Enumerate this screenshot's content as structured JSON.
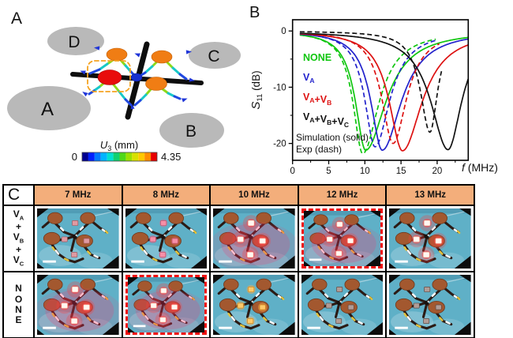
{
  "panelA": {
    "panel_label": "A",
    "regions": [
      {
        "label": "A"
      },
      {
        "label": "B"
      },
      {
        "label": "C"
      },
      {
        "label": "D"
      }
    ],
    "region_color": "#b9b9b9",
    "highlight_box_color": "#f5a320",
    "colorbar": {
      "symbol": "U",
      "sub": "3",
      "unit": " (mm)",
      "min": "0",
      "max": "4.35",
      "colors": [
        "#000090",
        "#0020ff",
        "#0078ff",
        "#00b4ff",
        "#00e0d0",
        "#10d070",
        "#50d818",
        "#9ce000",
        "#d8e000",
        "#ffc800",
        "#ff8c00",
        "#e80000"
      ]
    }
  },
  "panelB": {
    "panel_label": "B"
  },
  "chart_data": {
    "type": "line",
    "title": "",
    "xlabel": {
      "symbol": "f",
      "unit": " (MHz)"
    },
    "ylabel": {
      "symbol": "S",
      "sub": "11",
      "unit": " (dB)"
    },
    "xlim": [
      0,
      24.3
    ],
    "ylim": [
      -23,
      2
    ],
    "xticks": [
      0,
      5,
      10,
      15,
      20
    ],
    "xminorticks": [
      2.5,
      7.5,
      12.5,
      17.5,
      22.5
    ],
    "yticks": [
      0,
      -10,
      -20
    ],
    "yminorticks": [
      -5,
      -15
    ],
    "grid": false,
    "legend_position": "inside-left",
    "legend": [
      {
        "color": "#0fc60f",
        "segs": [
          {
            "t": "NONE"
          }
        ]
      },
      {
        "color": "#2222cc",
        "segs": [
          {
            "t": "V"
          },
          {
            "t": "A",
            "sub": true
          }
        ]
      },
      {
        "color": "#dd1111",
        "segs": [
          {
            "t": "V"
          },
          {
            "t": "A",
            "sub": true
          },
          {
            "t": "+V"
          },
          {
            "t": "B",
            "sub": true
          }
        ]
      },
      {
        "color": "#111111",
        "segs": [
          {
            "t": "V"
          },
          {
            "t": "A",
            "sub": true
          },
          {
            "t": "+V"
          },
          {
            "t": "B",
            "sub": true
          },
          {
            "t": "+V"
          },
          {
            "t": "C",
            "sub": true
          }
        ]
      }
    ],
    "legend_notes": [
      "Simulation (solid)",
      "Exp (dash)"
    ],
    "series": [
      {
        "name": "NONE",
        "kind": "simulation",
        "style": "solid",
        "color": "#0fc60f",
        "dip_f": 10.1,
        "dip_s11": -21.2,
        "wl": 1.7,
        "wr": 3.4,
        "fstart": 1.0,
        "fend": 24.3
      },
      {
        "name": "NONE",
        "kind": "experiment",
        "style": "dash",
        "color": "#0fc60f",
        "dip_f": 9.7,
        "dip_s11": -21.8,
        "wl": 1.6,
        "wr": 2.7,
        "fstart": 1.0,
        "fend": 19.8
      },
      {
        "name": "VA",
        "kind": "simulation",
        "style": "solid",
        "color": "#2222cc",
        "dip_f": 12.4,
        "dip_s11": -21.2,
        "wl": 1.9,
        "wr": 3.2,
        "fstart": 1.0,
        "fend": 24.3
      },
      {
        "name": "VA",
        "kind": "experiment",
        "style": "dash",
        "color": "#2222cc",
        "dip_f": 11.4,
        "dip_s11": -20.6,
        "wl": 1.7,
        "wr": 2.5,
        "fstart": 1.0,
        "fend": 19.9
      },
      {
        "name": "VA+VB",
        "kind": "simulation",
        "style": "solid",
        "color": "#dd1111",
        "dip_f": 15.2,
        "dip_s11": -21.3,
        "wl": 2.2,
        "wr": 3.3,
        "fstart": 1.0,
        "fend": 24.3
      },
      {
        "name": "VA+VB",
        "kind": "experiment",
        "style": "dash",
        "color": "#dd1111",
        "dip_f": 13.9,
        "dip_s11": -20.0,
        "wl": 1.9,
        "wr": 2.3,
        "fstart": 1.0,
        "fend": 20.3
      },
      {
        "name": "VA+VB+VC",
        "kind": "simulation",
        "style": "solid",
        "color": "#111111",
        "dip_f": 21.5,
        "dip_s11": -21.1,
        "wl": 2.9,
        "wr": 2.3,
        "fstart": 1.0,
        "fend": 24.3
      },
      {
        "name": "VA+VB+VC",
        "kind": "experiment",
        "style": "dash",
        "color": "#111111",
        "dip_f": 19.0,
        "dip_s11": -18.0,
        "wl": 1.6,
        "wr": 1.3,
        "fstart": 1.0,
        "fend": 20.6
      }
    ]
  },
  "panelC": {
    "corner_label": "C",
    "header_bg": "#f3ae7b",
    "highlight_color": "#ee1111",
    "columns": [
      "7 MHz",
      "8 MHz",
      "10 MHz",
      "12 MHz",
      "13 MHz"
    ],
    "rows": [
      {
        "label_lines": [
          {
            "t": "V",
            "sub": "A"
          },
          {
            "t": "+"
          },
          {
            "t": "V",
            "sub": "B"
          },
          {
            "t": "+"
          },
          {
            "t": "V",
            "sub": "C"
          }
        ],
        "cells": [
          {
            "led": "faint",
            "haze": false,
            "highlighted": false
          },
          {
            "led": "pink",
            "haze": false,
            "highlighted": false
          },
          {
            "led": "bright",
            "haze": true,
            "highlighted": false
          },
          {
            "led": "bright",
            "haze": true,
            "highlighted": true
          },
          {
            "led": "bright",
            "haze": false,
            "highlighted": false
          }
        ]
      },
      {
        "label_lines": [
          {
            "t": "N"
          },
          {
            "t": "O"
          },
          {
            "t": "N"
          },
          {
            "t": "E"
          }
        ],
        "cells": [
          {
            "led": "bright",
            "haze": true,
            "highlighted": false
          },
          {
            "led": "bright",
            "haze": true,
            "highlighted": true
          },
          {
            "led": "orange",
            "haze": false,
            "highlighted": false
          },
          {
            "led": "off",
            "haze": false,
            "highlighted": false
          },
          {
            "led": "off",
            "haze": false,
            "highlighted": false
          }
        ]
      }
    ]
  }
}
